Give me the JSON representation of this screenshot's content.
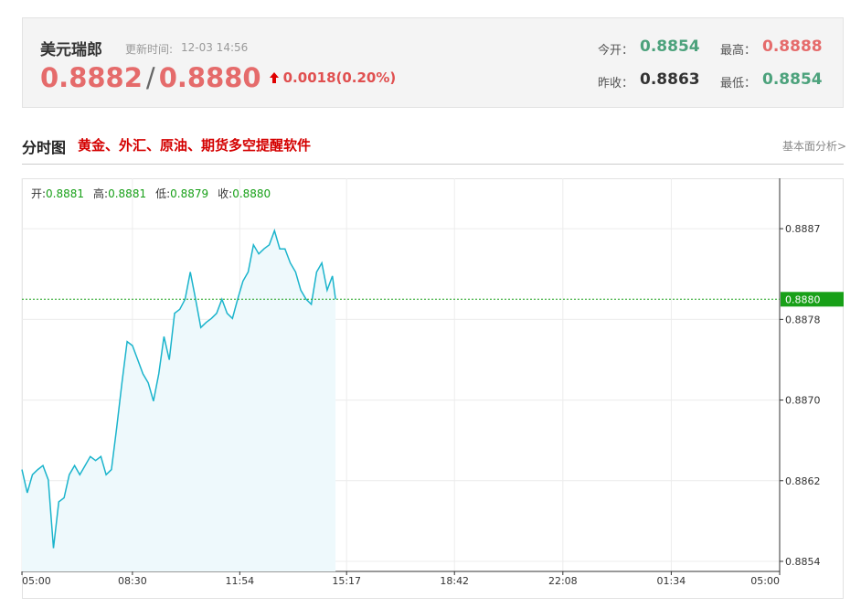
{
  "header": {
    "name": "美元瑞郎",
    "update_label": "更新时间:",
    "update_time": "12-03 14:56",
    "bid": "0.8882",
    "separator": "/",
    "ask": "0.8880",
    "change": "0.0018(0.20%)",
    "open_label": "今开：",
    "open": "0.8854",
    "high_label": "最高：",
    "high": "0.8888",
    "prev_close_label": "昨收：",
    "prev_close": "0.8863",
    "low_label": "最低：",
    "low": "0.8854"
  },
  "section": {
    "title": "分时图",
    "promo": "黄金、外汇、原油、期货多空提醒软件",
    "link": "基本面分析>"
  },
  "chart_data": {
    "type": "line",
    "ohlc": [
      {
        "label": "开:",
        "value": "0.8881"
      },
      {
        "label": "高:",
        "value": "0.8881"
      },
      {
        "label": "低:",
        "value": "0.8879"
      },
      {
        "label": "收:",
        "value": "0.8880"
      }
    ],
    "x": [
      "05:00",
      "05:10",
      "05:20",
      "05:30",
      "05:40",
      "05:50",
      "06:00",
      "06:10",
      "06:20",
      "06:30",
      "06:40",
      "06:50",
      "07:00",
      "07:10",
      "07:20",
      "07:30",
      "07:40",
      "07:50",
      "08:00",
      "08:10",
      "08:20",
      "08:30",
      "08:40",
      "08:50",
      "09:00",
      "09:10",
      "09:20",
      "09:30",
      "09:40",
      "09:50",
      "10:00",
      "10:10",
      "10:20",
      "10:30",
      "10:40",
      "10:50",
      "11:00",
      "11:10",
      "11:20",
      "11:30",
      "11:40",
      "11:50",
      "12:00",
      "12:10",
      "12:20",
      "12:30",
      "12:40",
      "12:50",
      "13:00",
      "13:10",
      "13:20",
      "13:30",
      "13:40",
      "13:50",
      "14:00",
      "14:10",
      "14:20",
      "14:30",
      "14:40",
      "14:50",
      "14:56"
    ],
    "series": [
      {
        "name": "美元瑞郎",
        "color": "#1bb4cc",
        "values": [
          0.88631,
          0.88608,
          0.88626,
          0.88631,
          0.88635,
          0.88621,
          0.88553,
          0.88599,
          0.88603,
          0.88626,
          0.88635,
          0.88626,
          0.88635,
          0.88644,
          0.8864,
          0.88644,
          0.88626,
          0.88631,
          0.88672,
          0.88717,
          0.88758,
          0.88754,
          0.8874,
          0.88726,
          0.88717,
          0.88699,
          0.88726,
          0.88763,
          0.8874,
          0.88786,
          0.8879,
          0.888,
          0.88827,
          0.888,
          0.88772,
          0.88777,
          0.88781,
          0.88786,
          0.888,
          0.88786,
          0.88781,
          0.888,
          0.88818,
          0.88827,
          0.88854,
          0.88845,
          0.8885,
          0.88854,
          0.88868,
          0.8885,
          0.8885,
          0.88836,
          0.88827,
          0.88809,
          0.888,
          0.88795,
          0.88827,
          0.88836,
          0.88809,
          0.88823,
          0.888
        ]
      }
    ],
    "current": {
      "value": 0.888,
      "label": "0.8880",
      "color": "#18a018"
    },
    "xticks": [
      "05:00",
      "08:30",
      "11:54",
      "15:17",
      "18:42",
      "22:08",
      "01:34",
      "05:00"
    ],
    "ylim": [
      0.8853,
      0.8892
    ],
    "yticks": [
      0.8854,
      0.8862,
      {
        "value": 0.887,
        "label": "0.8870"
      },
      0.8878,
      0.8887
    ],
    "grid": true
  }
}
